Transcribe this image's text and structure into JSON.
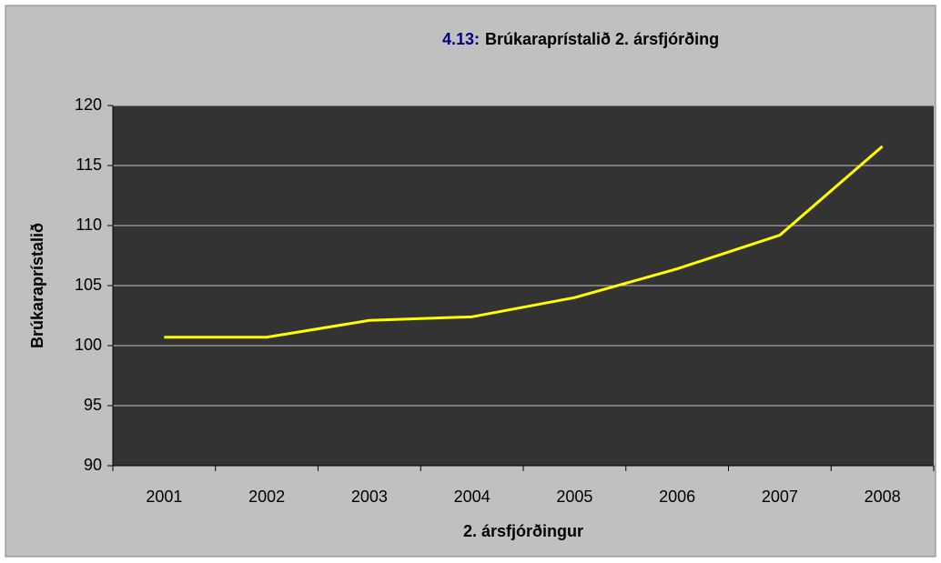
{
  "chart_data": {
    "type": "line",
    "title_number": "4.13:",
    "title": "Brúkaraprístalið 2. ársfjórðing",
    "x_label": "2. ársfjórðingur",
    "y_label": "Brúkaraprístalið",
    "categories": [
      "2001",
      "2002",
      "2003",
      "2004",
      "2005",
      "2006",
      "2007",
      "2008"
    ],
    "series": [
      {
        "name": "Brúkaraprístalið",
        "color": "#ffff00",
        "values": [
          100.7,
          100.7,
          102.1,
          102.4,
          104.0,
          106.4,
          109.2,
          116.6
        ]
      }
    ],
    "ylim": [
      90,
      120
    ],
    "yticks": [
      90,
      95,
      100,
      105,
      110,
      115,
      120
    ],
    "grid": true
  }
}
